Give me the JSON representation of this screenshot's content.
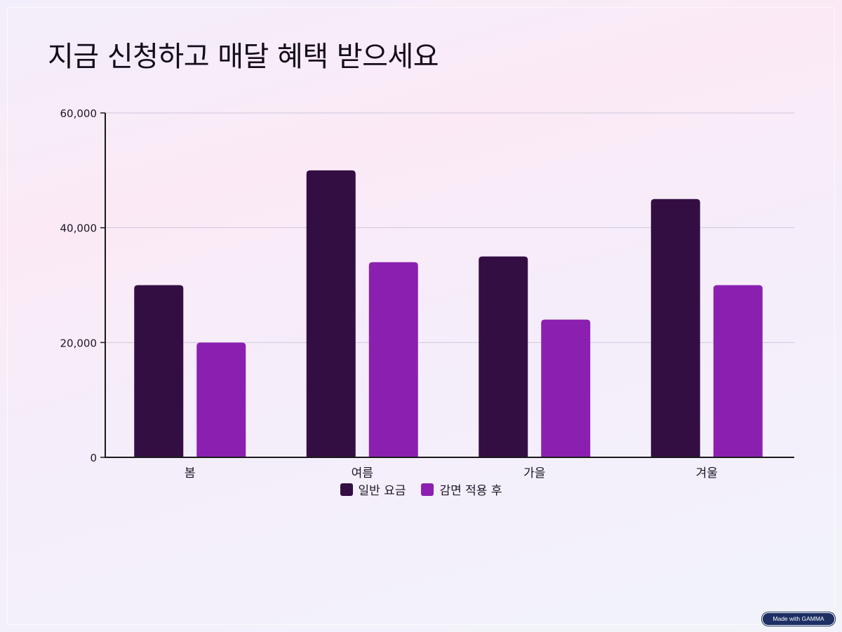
{
  "slide": {
    "title": "지금 신청하고 매달 혜택 받으세요"
  },
  "badge": {
    "label": "Made with GAMMA"
  },
  "colors": {
    "series_regular": "#330e43",
    "series_discount": "#8b20b0",
    "grid": "#cfc7dc",
    "axis": "#1a1a1a"
  },
  "chart_data": {
    "type": "bar",
    "title": "",
    "xlabel": "",
    "ylabel": "",
    "categories": [
      "봄",
      "여름",
      "가을",
      "겨울"
    ],
    "series": [
      {
        "name": "일반 요금",
        "values": [
          30000,
          50000,
          35000,
          45000
        ]
      },
      {
        "name": "감면 적용 후",
        "values": [
          20000,
          34000,
          24000,
          30000
        ]
      }
    ],
    "ylim": [
      0,
      60000
    ],
    "yticks": [
      0,
      20000,
      40000,
      60000
    ],
    "ytick_labels": [
      "0",
      "20,000",
      "40,000",
      "60,000"
    ],
    "grid": true,
    "legend_position": "bottom-center"
  }
}
